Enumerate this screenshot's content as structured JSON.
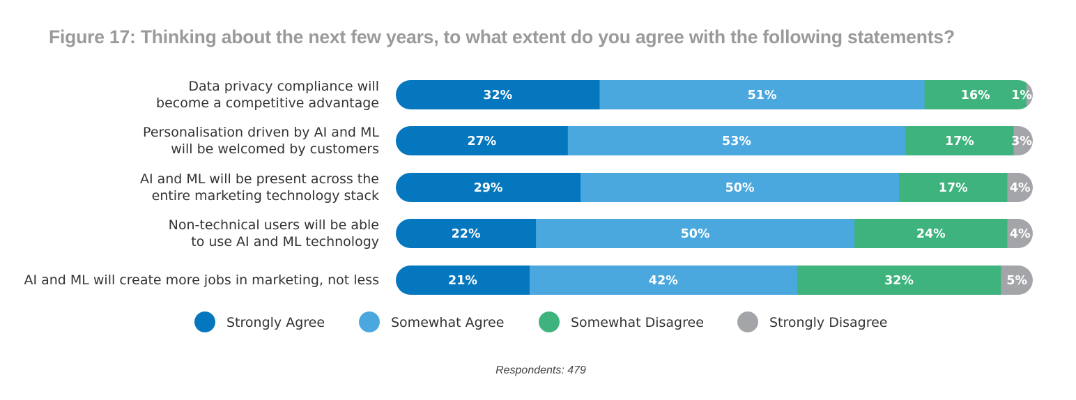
{
  "chart_data": {
    "type": "bar",
    "orientation": "horizontal",
    "stacked": true,
    "title": "Figure 17: Thinking about the next few years, to what extent do you agree with the following statements?",
    "categories": [
      [
        "Data privacy compliance will",
        "become a competitive advantage"
      ],
      [
        "Personalisation driven by AI and ML",
        "will be welcomed by customers"
      ],
      [
        "AI and ML will be present across the",
        "entire marketing technology stack"
      ],
      [
        "Non-technical users will be able",
        "to use AI and ML technology"
      ],
      [
        "AI and ML will create more jobs in marketing, not less"
      ]
    ],
    "series": [
      {
        "name": "Strongly Agree",
        "color": "#0477bf",
        "values": [
          32,
          27,
          29,
          22,
          21
        ]
      },
      {
        "name": "Somewhat Agree",
        "color": "#4aa8df",
        "values": [
          51,
          53,
          50,
          50,
          42
        ]
      },
      {
        "name": "Somewhat Disagree",
        "color": "#3eb37d",
        "values": [
          16,
          17,
          17,
          24,
          32
        ]
      },
      {
        "name": "Strongly Disagree",
        "color": "#a3a5a8",
        "values": [
          1,
          3,
          4,
          4,
          5
        ]
      }
    ],
    "value_suffix": "%",
    "xlim": [
      0,
      100
    ],
    "legend_position": "bottom",
    "grid": false
  },
  "footnote": "Respondents: 479"
}
